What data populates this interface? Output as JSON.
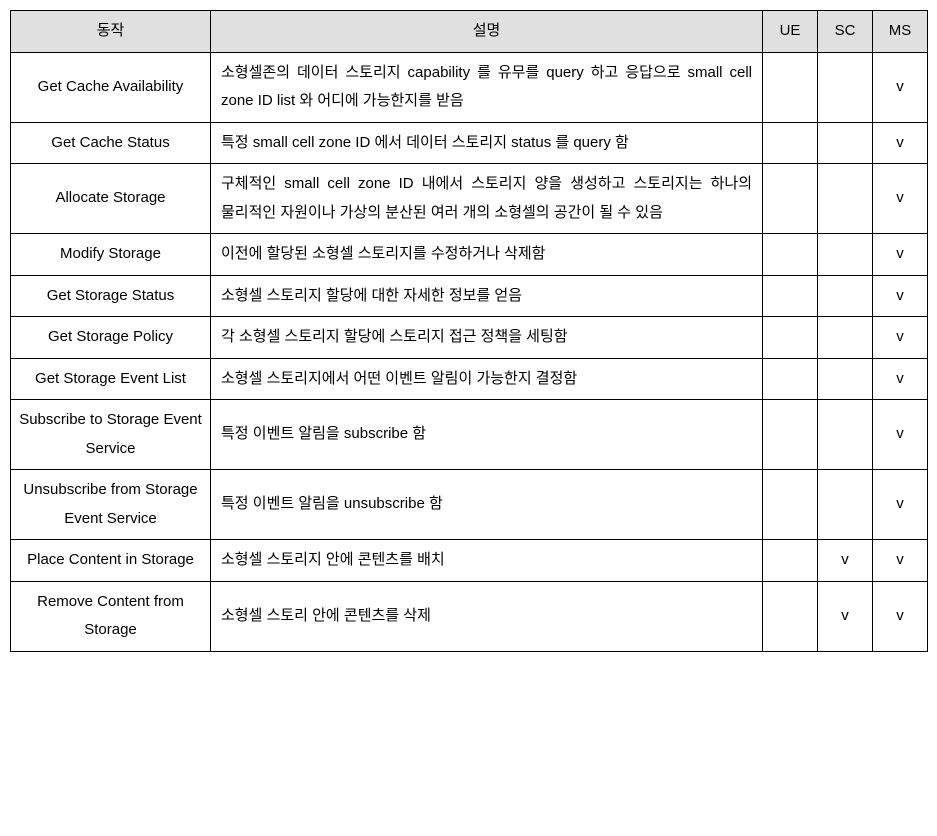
{
  "table": {
    "headers": {
      "action": "동작",
      "description": "설명",
      "ue": "UE",
      "sc": "SC",
      "ms": "MS"
    },
    "check_mark": "v",
    "header_bg": "#e0e0e0",
    "border_color": "#000000",
    "font_size": 15,
    "rows": [
      {
        "action": "Get Cache Availability",
        "description": "소형셀존의 데이터 스토리지 capability 를 유무를 query 하고 응답으로 small cell zone ID list 와 어디에 가능한지를 받음",
        "ue": "",
        "sc": "",
        "ms": "v"
      },
      {
        "action": "Get Cache Status",
        "description": "특정 small cell zone ID 에서 데이터 스토리지 status 를 query 함",
        "ue": "",
        "sc": "",
        "ms": "v"
      },
      {
        "action": "Allocate Storage",
        "description": "구체적인 small cell zone ID 내에서 스토리지 양을 생성하고 스토리지는 하나의 물리적인 자원이나 가상의 분산된 여러 개의 소형셀의 공간이 될 수 있음",
        "ue": "",
        "sc": "",
        "ms": "v"
      },
      {
        "action": "Modify Storage",
        "description": "이전에 할당된 소형셀 스토리지를 수정하거나 삭제함",
        "ue": "",
        "sc": "",
        "ms": "v"
      },
      {
        "action": "Get Storage Status",
        "description": "소형셀 스토리지 할당에 대한 자세한 정보를 얻음",
        "ue": "",
        "sc": "",
        "ms": "v"
      },
      {
        "action": "Get Storage Policy",
        "description": "각 소형셀 스토리지 할당에 스토리지 접근 정책을 세팅함",
        "ue": "",
        "sc": "",
        "ms": "v"
      },
      {
        "action": "Get Storage Event List",
        "description": "소형셀 스토리지에서 어떤 이벤트 알림이 가능한지 결정함",
        "ue": "",
        "sc": "",
        "ms": "v"
      },
      {
        "action": "Subscribe to Storage Event Service",
        "description": "특정 이벤트 알림을 subscribe 함",
        "ue": "",
        "sc": "",
        "ms": "v"
      },
      {
        "action": "Unsubscribe from Storage Event Service",
        "description": "특정 이벤트 알림을 unsubscribe 함",
        "ue": "",
        "sc": "",
        "ms": "v"
      },
      {
        "action": "Place Content in Storage",
        "description": "소형셀 스토리지 안에 콘텐츠를 배치",
        "ue": "",
        "sc": "v",
        "ms": "v"
      },
      {
        "action": "Remove Content from Storage",
        "description": "소형셀 스토리 안에 콘텐츠를 삭제",
        "ue": "",
        "sc": "v",
        "ms": "v"
      }
    ]
  }
}
